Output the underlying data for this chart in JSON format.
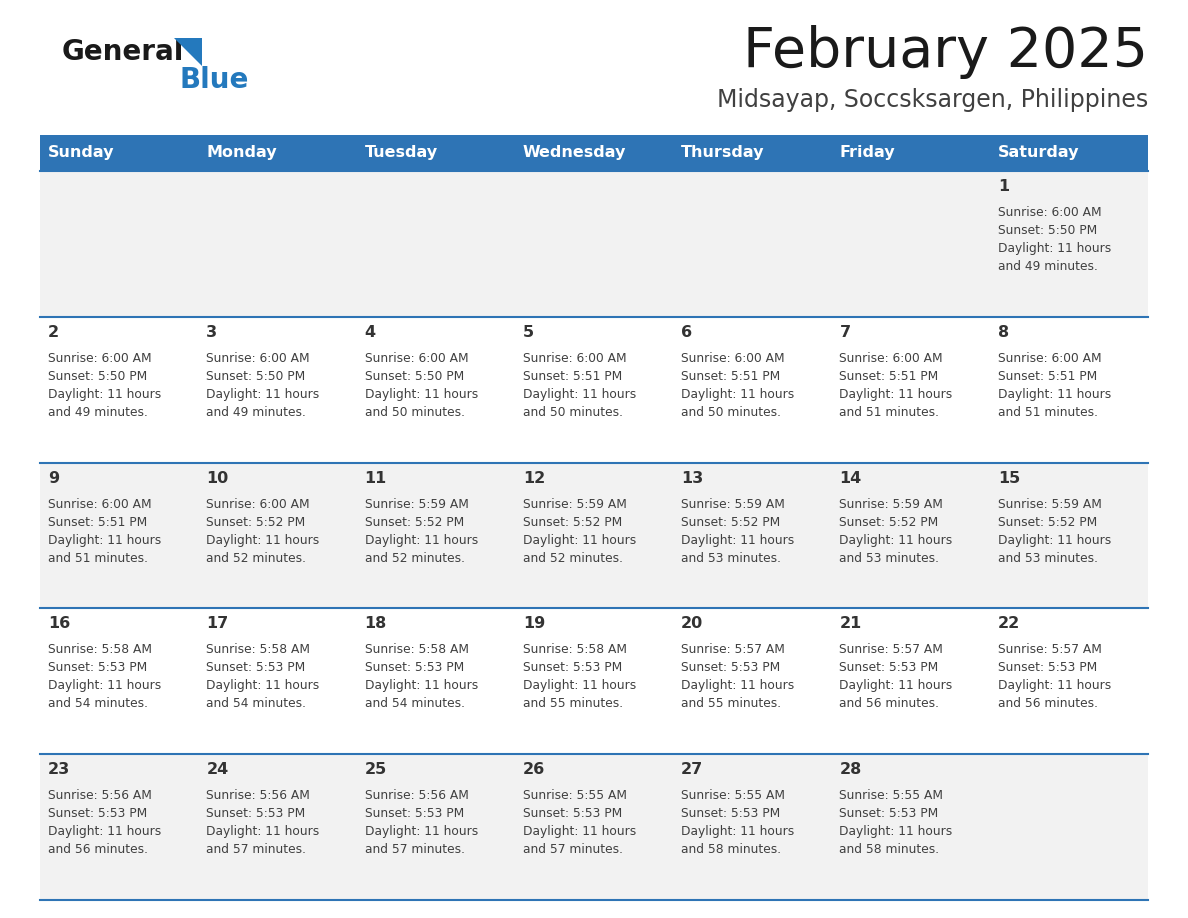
{
  "title": "February 2025",
  "subtitle": "Midsayap, Soccsksargen, Philippines",
  "header_bg": "#2E74B5",
  "header_text": "#FFFFFF",
  "row_bg_odd": "#F2F2F2",
  "row_bg_even": "#FFFFFF",
  "separator_color": "#2E74B5",
  "day_headers": [
    "Sunday",
    "Monday",
    "Tuesday",
    "Wednesday",
    "Thursday",
    "Friday",
    "Saturday"
  ],
  "calendar_data": [
    [
      {
        "day": "",
        "sunrise": "",
        "sunset": "",
        "daylight_line3": "",
        "daylight_line4": ""
      },
      {
        "day": "",
        "sunrise": "",
        "sunset": "",
        "daylight_line3": "",
        "daylight_line4": ""
      },
      {
        "day": "",
        "sunrise": "",
        "sunset": "",
        "daylight_line3": "",
        "daylight_line4": ""
      },
      {
        "day": "",
        "sunrise": "",
        "sunset": "",
        "daylight_line3": "",
        "daylight_line4": ""
      },
      {
        "day": "",
        "sunrise": "",
        "sunset": "",
        "daylight_line3": "",
        "daylight_line4": ""
      },
      {
        "day": "",
        "sunrise": "",
        "sunset": "",
        "daylight_line3": "",
        "daylight_line4": ""
      },
      {
        "day": "1",
        "sunrise": "Sunrise: 6:00 AM",
        "sunset": "Sunset: 5:50 PM",
        "daylight_line3": "Daylight: 11 hours",
        "daylight_line4": "and 49 minutes."
      }
    ],
    [
      {
        "day": "2",
        "sunrise": "Sunrise: 6:00 AM",
        "sunset": "Sunset: 5:50 PM",
        "daylight_line3": "Daylight: 11 hours",
        "daylight_line4": "and 49 minutes."
      },
      {
        "day": "3",
        "sunrise": "Sunrise: 6:00 AM",
        "sunset": "Sunset: 5:50 PM",
        "daylight_line3": "Daylight: 11 hours",
        "daylight_line4": "and 49 minutes."
      },
      {
        "day": "4",
        "sunrise": "Sunrise: 6:00 AM",
        "sunset": "Sunset: 5:50 PM",
        "daylight_line3": "Daylight: 11 hours",
        "daylight_line4": "and 50 minutes."
      },
      {
        "day": "5",
        "sunrise": "Sunrise: 6:00 AM",
        "sunset": "Sunset: 5:51 PM",
        "daylight_line3": "Daylight: 11 hours",
        "daylight_line4": "and 50 minutes."
      },
      {
        "day": "6",
        "sunrise": "Sunrise: 6:00 AM",
        "sunset": "Sunset: 5:51 PM",
        "daylight_line3": "Daylight: 11 hours",
        "daylight_line4": "and 50 minutes."
      },
      {
        "day": "7",
        "sunrise": "Sunrise: 6:00 AM",
        "sunset": "Sunset: 5:51 PM",
        "daylight_line3": "Daylight: 11 hours",
        "daylight_line4": "and 51 minutes."
      },
      {
        "day": "8",
        "sunrise": "Sunrise: 6:00 AM",
        "sunset": "Sunset: 5:51 PM",
        "daylight_line3": "Daylight: 11 hours",
        "daylight_line4": "and 51 minutes."
      }
    ],
    [
      {
        "day": "9",
        "sunrise": "Sunrise: 6:00 AM",
        "sunset": "Sunset: 5:51 PM",
        "daylight_line3": "Daylight: 11 hours",
        "daylight_line4": "and 51 minutes."
      },
      {
        "day": "10",
        "sunrise": "Sunrise: 6:00 AM",
        "sunset": "Sunset: 5:52 PM",
        "daylight_line3": "Daylight: 11 hours",
        "daylight_line4": "and 52 minutes."
      },
      {
        "day": "11",
        "sunrise": "Sunrise: 5:59 AM",
        "sunset": "Sunset: 5:52 PM",
        "daylight_line3": "Daylight: 11 hours",
        "daylight_line4": "and 52 minutes."
      },
      {
        "day": "12",
        "sunrise": "Sunrise: 5:59 AM",
        "sunset": "Sunset: 5:52 PM",
        "daylight_line3": "Daylight: 11 hours",
        "daylight_line4": "and 52 minutes."
      },
      {
        "day": "13",
        "sunrise": "Sunrise: 5:59 AM",
        "sunset": "Sunset: 5:52 PM",
        "daylight_line3": "Daylight: 11 hours",
        "daylight_line4": "and 53 minutes."
      },
      {
        "day": "14",
        "sunrise": "Sunrise: 5:59 AM",
        "sunset": "Sunset: 5:52 PM",
        "daylight_line3": "Daylight: 11 hours",
        "daylight_line4": "and 53 minutes."
      },
      {
        "day": "15",
        "sunrise": "Sunrise: 5:59 AM",
        "sunset": "Sunset: 5:52 PM",
        "daylight_line3": "Daylight: 11 hours",
        "daylight_line4": "and 53 minutes."
      }
    ],
    [
      {
        "day": "16",
        "sunrise": "Sunrise: 5:58 AM",
        "sunset": "Sunset: 5:53 PM",
        "daylight_line3": "Daylight: 11 hours",
        "daylight_line4": "and 54 minutes."
      },
      {
        "day": "17",
        "sunrise": "Sunrise: 5:58 AM",
        "sunset": "Sunset: 5:53 PM",
        "daylight_line3": "Daylight: 11 hours",
        "daylight_line4": "and 54 minutes."
      },
      {
        "day": "18",
        "sunrise": "Sunrise: 5:58 AM",
        "sunset": "Sunset: 5:53 PM",
        "daylight_line3": "Daylight: 11 hours",
        "daylight_line4": "and 54 minutes."
      },
      {
        "day": "19",
        "sunrise": "Sunrise: 5:58 AM",
        "sunset": "Sunset: 5:53 PM",
        "daylight_line3": "Daylight: 11 hours",
        "daylight_line4": "and 55 minutes."
      },
      {
        "day": "20",
        "sunrise": "Sunrise: 5:57 AM",
        "sunset": "Sunset: 5:53 PM",
        "daylight_line3": "Daylight: 11 hours",
        "daylight_line4": "and 55 minutes."
      },
      {
        "day": "21",
        "sunrise": "Sunrise: 5:57 AM",
        "sunset": "Sunset: 5:53 PM",
        "daylight_line3": "Daylight: 11 hours",
        "daylight_line4": "and 56 minutes."
      },
      {
        "day": "22",
        "sunrise": "Sunrise: 5:57 AM",
        "sunset": "Sunset: 5:53 PM",
        "daylight_line3": "Daylight: 11 hours",
        "daylight_line4": "and 56 minutes."
      }
    ],
    [
      {
        "day": "23",
        "sunrise": "Sunrise: 5:56 AM",
        "sunset": "Sunset: 5:53 PM",
        "daylight_line3": "Daylight: 11 hours",
        "daylight_line4": "and 56 minutes."
      },
      {
        "day": "24",
        "sunrise": "Sunrise: 5:56 AM",
        "sunset": "Sunset: 5:53 PM",
        "daylight_line3": "Daylight: 11 hours",
        "daylight_line4": "and 57 minutes."
      },
      {
        "day": "25",
        "sunrise": "Sunrise: 5:56 AM",
        "sunset": "Sunset: 5:53 PM",
        "daylight_line3": "Daylight: 11 hours",
        "daylight_line4": "and 57 minutes."
      },
      {
        "day": "26",
        "sunrise": "Sunrise: 5:55 AM",
        "sunset": "Sunset: 5:53 PM",
        "daylight_line3": "Daylight: 11 hours",
        "daylight_line4": "and 57 minutes."
      },
      {
        "day": "27",
        "sunrise": "Sunrise: 5:55 AM",
        "sunset": "Sunset: 5:53 PM",
        "daylight_line3": "Daylight: 11 hours",
        "daylight_line4": "and 58 minutes."
      },
      {
        "day": "28",
        "sunrise": "Sunrise: 5:55 AM",
        "sunset": "Sunset: 5:53 PM",
        "daylight_line3": "Daylight: 11 hours",
        "daylight_line4": "and 58 minutes."
      },
      {
        "day": "",
        "sunrise": "",
        "sunset": "",
        "daylight_line3": "",
        "daylight_line4": ""
      }
    ]
  ],
  "logo_color_general": "#1a1a1a",
  "logo_color_blue": "#2479BD",
  "title_color": "#1a1a1a",
  "subtitle_color": "#404040",
  "cell_text_color": "#404040",
  "day_number_color": "#333333",
  "fig_width": 11.88,
  "fig_height": 9.18,
  "dpi": 100
}
